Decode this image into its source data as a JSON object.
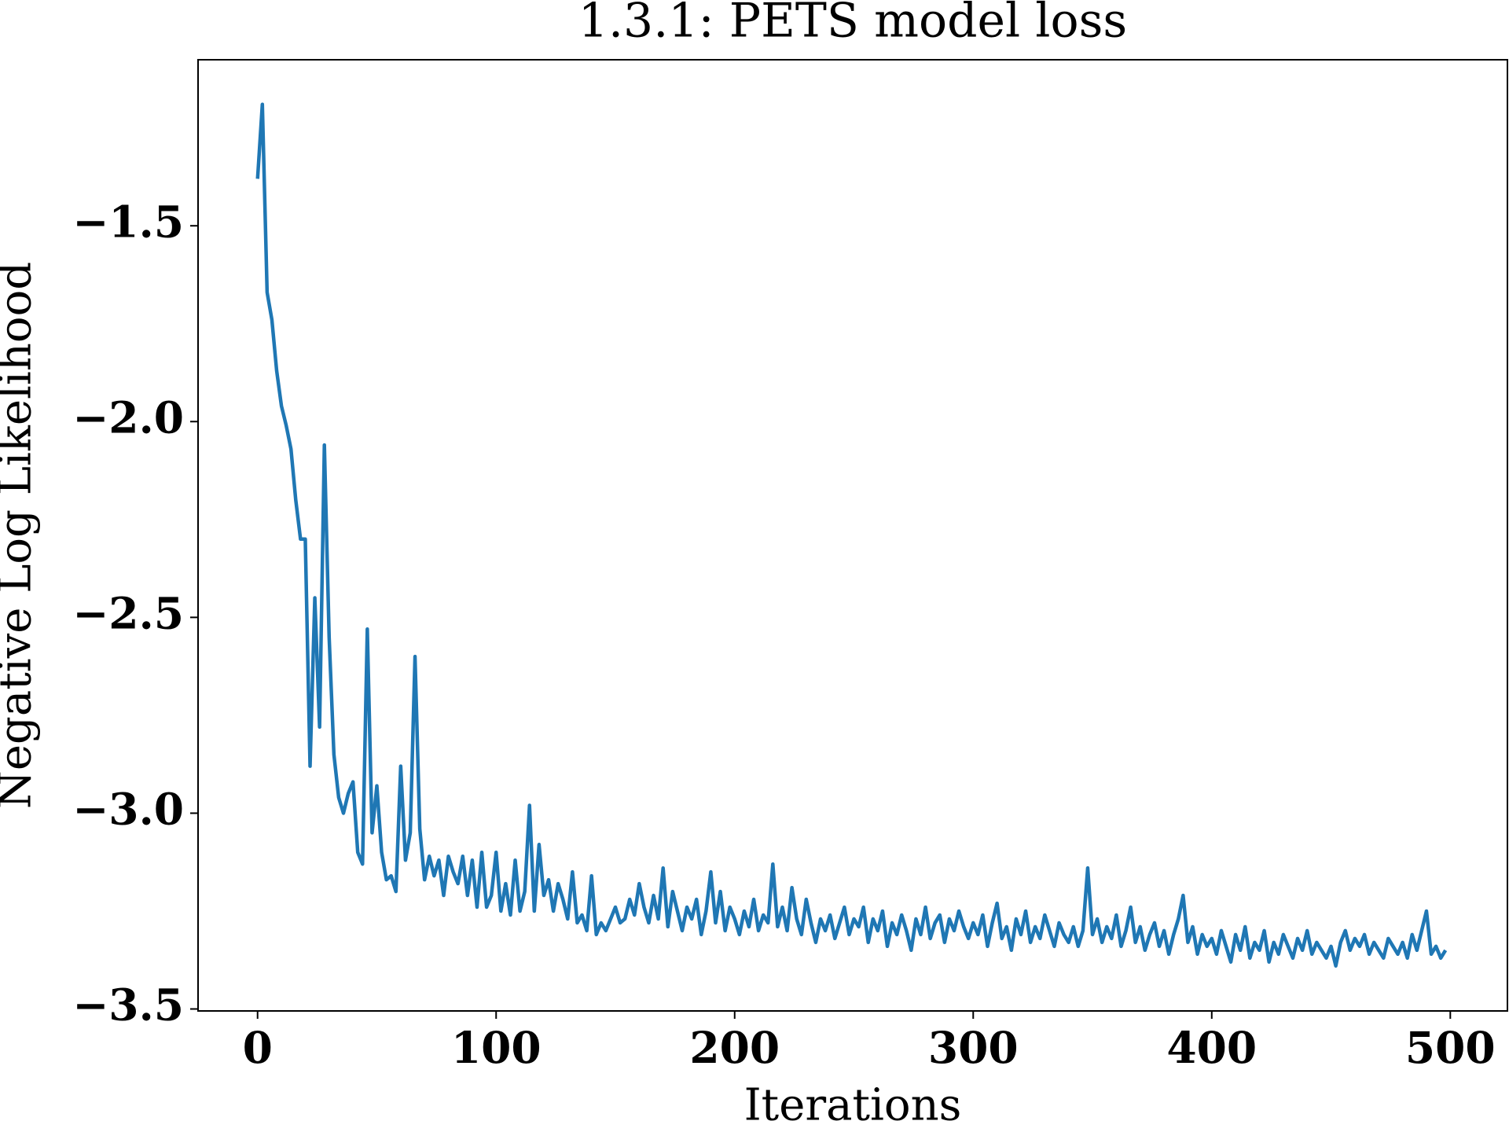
{
  "chart_data": {
    "type": "line",
    "title": "1.3.1: PETS model loss",
    "x_label": "Iterations",
    "y_label": "Negative Log Likelihood",
    "xlim": [
      -24.95,
      523.95
    ],
    "ylim": [
      -3.505,
      -1.076
    ],
    "xticks": [
      0,
      100,
      200,
      300,
      400,
      500
    ],
    "yticks": [
      {
        "value": -1.5,
        "label": "−1.5"
      },
      {
        "value": -2.0,
        "label": "−2.0"
      },
      {
        "value": -2.5,
        "label": "−2.5"
      },
      {
        "value": -3.0,
        "label": "−3.0"
      },
      {
        "value": -3.5,
        "label": "−3.5"
      }
    ],
    "grid": false,
    "series": [
      {
        "color": "#1f77b4",
        "x": [
          0,
          2,
          4,
          6,
          8,
          10,
          12,
          14,
          16,
          18,
          20,
          22,
          24,
          26,
          28,
          30,
          32,
          34,
          36,
          38,
          40,
          42,
          44,
          46,
          48,
          50,
          52,
          54,
          56,
          58,
          60,
          62,
          64,
          66,
          68,
          70,
          72,
          74,
          76,
          78,
          80,
          82,
          84,
          86,
          88,
          90,
          92,
          94,
          96,
          98,
          100,
          102,
          104,
          106,
          108,
          110,
          112,
          114,
          116,
          118,
          120,
          122,
          124,
          126,
          128,
          130,
          132,
          134,
          136,
          138,
          140,
          142,
          144,
          146,
          148,
          150,
          152,
          154,
          156,
          158,
          160,
          162,
          164,
          166,
          168,
          170,
          172,
          174,
          176,
          178,
          180,
          182,
          184,
          186,
          188,
          190,
          192,
          194,
          196,
          198,
          200,
          202,
          204,
          206,
          208,
          210,
          212,
          214,
          216,
          218,
          220,
          222,
          224,
          226,
          228,
          230,
          232,
          234,
          236,
          238,
          240,
          242,
          244,
          246,
          248,
          250,
          252,
          254,
          256,
          258,
          260,
          262,
          264,
          266,
          268,
          270,
          272,
          274,
          276,
          278,
          280,
          282,
          284,
          286,
          288,
          290,
          292,
          294,
          296,
          298,
          300,
          302,
          304,
          306,
          308,
          310,
          312,
          314,
          316,
          318,
          320,
          322,
          324,
          326,
          328,
          330,
          332,
          334,
          336,
          338,
          340,
          342,
          344,
          346,
          348,
          350,
          352,
          354,
          356,
          358,
          360,
          362,
          364,
          366,
          368,
          370,
          372,
          374,
          376,
          378,
          380,
          382,
          384,
          386,
          388,
          390,
          392,
          394,
          396,
          398,
          400,
          402,
          404,
          406,
          408,
          410,
          412,
          414,
          416,
          418,
          420,
          422,
          424,
          426,
          428,
          430,
          432,
          434,
          436,
          438,
          440,
          442,
          444,
          446,
          448,
          450,
          452,
          454,
          456,
          458,
          460,
          462,
          464,
          466,
          468,
          470,
          472,
          474,
          476,
          478,
          480,
          482,
          484,
          486,
          488,
          490,
          492,
          494,
          496,
          498
        ],
        "values": [
          -1.38,
          -1.19,
          -1.67,
          -1.74,
          -1.87,
          -1.96,
          -2.01,
          -2.07,
          -2.2,
          -2.3,
          -2.3,
          -2.88,
          -2.45,
          -2.78,
          -2.06,
          -2.55,
          -2.85,
          -2.96,
          -3.0,
          -2.95,
          -2.92,
          -3.1,
          -3.13,
          -2.53,
          -3.05,
          -2.93,
          -3.1,
          -3.17,
          -3.16,
          -3.2,
          -2.88,
          -3.12,
          -3.05,
          -2.6,
          -3.04,
          -3.17,
          -3.11,
          -3.16,
          -3.12,
          -3.21,
          -3.11,
          -3.15,
          -3.18,
          -3.11,
          -3.21,
          -3.12,
          -3.24,
          -3.1,
          -3.24,
          -3.21,
          -3.1,
          -3.25,
          -3.18,
          -3.26,
          -3.12,
          -3.25,
          -3.2,
          -2.98,
          -3.25,
          -3.08,
          -3.21,
          -3.17,
          -3.25,
          -3.18,
          -3.22,
          -3.27,
          -3.15,
          -3.28,
          -3.26,
          -3.3,
          -3.16,
          -3.31,
          -3.28,
          -3.3,
          -3.27,
          -3.24,
          -3.28,
          -3.27,
          -3.22,
          -3.26,
          -3.18,
          -3.24,
          -3.28,
          -3.21,
          -3.27,
          -3.14,
          -3.29,
          -3.2,
          -3.25,
          -3.3,
          -3.24,
          -3.27,
          -3.22,
          -3.31,
          -3.25,
          -3.15,
          -3.28,
          -3.2,
          -3.3,
          -3.24,
          -3.27,
          -3.31,
          -3.25,
          -3.29,
          -3.22,
          -3.3,
          -3.26,
          -3.28,
          -3.13,
          -3.29,
          -3.24,
          -3.3,
          -3.19,
          -3.27,
          -3.31,
          -3.22,
          -3.28,
          -3.33,
          -3.27,
          -3.3,
          -3.26,
          -3.32,
          -3.28,
          -3.24,
          -3.31,
          -3.27,
          -3.29,
          -3.24,
          -3.33,
          -3.27,
          -3.3,
          -3.25,
          -3.34,
          -3.28,
          -3.31,
          -3.26,
          -3.3,
          -3.35,
          -3.27,
          -3.31,
          -3.24,
          -3.32,
          -3.28,
          -3.26,
          -3.33,
          -3.27,
          -3.3,
          -3.25,
          -3.29,
          -3.32,
          -3.28,
          -3.31,
          -3.26,
          -3.34,
          -3.28,
          -3.23,
          -3.32,
          -3.29,
          -3.35,
          -3.27,
          -3.31,
          -3.25,
          -3.33,
          -3.29,
          -3.32,
          -3.26,
          -3.3,
          -3.34,
          -3.28,
          -3.31,
          -3.33,
          -3.29,
          -3.34,
          -3.3,
          -3.14,
          -3.31,
          -3.27,
          -3.33,
          -3.29,
          -3.32,
          -3.26,
          -3.34,
          -3.3,
          -3.24,
          -3.33,
          -3.29,
          -3.35,
          -3.31,
          -3.28,
          -3.34,
          -3.3,
          -3.36,
          -3.31,
          -3.27,
          -3.21,
          -3.33,
          -3.29,
          -3.36,
          -3.31,
          -3.34,
          -3.32,
          -3.36,
          -3.3,
          -3.34,
          -3.38,
          -3.31,
          -3.35,
          -3.29,
          -3.37,
          -3.33,
          -3.35,
          -3.3,
          -3.38,
          -3.33,
          -3.36,
          -3.31,
          -3.34,
          -3.37,
          -3.32,
          -3.35,
          -3.3,
          -3.36,
          -3.33,
          -3.35,
          -3.37,
          -3.34,
          -3.39,
          -3.33,
          -3.3,
          -3.35,
          -3.32,
          -3.34,
          -3.31,
          -3.36,
          -3.33,
          -3.35,
          -3.37,
          -3.32,
          -3.34,
          -3.36,
          -3.33,
          -3.37,
          -3.31,
          -3.35,
          -3.3,
          -3.25,
          -3.36,
          -3.34,
          -3.37,
          -3.35
        ]
      }
    ]
  }
}
